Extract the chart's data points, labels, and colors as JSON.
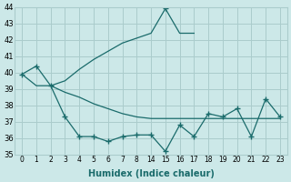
{
  "xlabel": "Humidex (Indice chaleur)",
  "bg_color": "#cce8e8",
  "grid_color": "#aacccc",
  "line_color": "#1a6b6b",
  "ylim": [
    35,
    44
  ],
  "yticks": [
    35,
    36,
    37,
    38,
    39,
    40,
    41,
    42,
    43,
    44
  ],
  "xtick_labels": [
    "0",
    "1",
    "2",
    "3",
    "4",
    "5",
    "6",
    "7",
    "8",
    "14",
    "15",
    "16",
    "17",
    "18",
    "19",
    "20",
    "21",
    "22",
    "23"
  ],
  "n_xticks": 19,
  "line1_xi": [
    0,
    1,
    2,
    3,
    4,
    5,
    6,
    7,
    8,
    9,
    10,
    11,
    12
  ],
  "line1_y": [
    39.9,
    40.4,
    39.2,
    39.5,
    40.2,
    40.8,
    41.3,
    41.8,
    42.1,
    42.4,
    43.9,
    42.4,
    42.4
  ],
  "line1_markers": [
    0,
    1,
    10
  ],
  "line2_xi": [
    0,
    1,
    2,
    3,
    4,
    5,
    6,
    7,
    8,
    9,
    10,
    11,
    12,
    13,
    14,
    15,
    16,
    17,
    18
  ],
  "line2_y": [
    39.9,
    39.2,
    39.2,
    38.8,
    38.5,
    38.1,
    37.8,
    37.5,
    37.3,
    37.2,
    37.2,
    37.2,
    37.2,
    37.2,
    37.2,
    37.2,
    37.2,
    37.2,
    37.2
  ],
  "line3_xi": [
    2,
    3,
    4,
    5,
    6,
    7,
    8,
    9,
    10,
    11,
    12,
    13,
    14,
    15,
    16,
    17,
    18
  ],
  "line3_y": [
    39.2,
    37.3,
    36.1,
    36.1,
    35.8,
    36.1,
    36.2,
    36.2,
    35.2,
    36.8,
    36.1,
    37.5,
    37.3,
    37.8,
    36.1,
    38.4,
    37.3
  ],
  "line3_markers": [
    2,
    3,
    4,
    5,
    6,
    7,
    8,
    9,
    10,
    11,
    12,
    13,
    14,
    15,
    16,
    17,
    18
  ]
}
